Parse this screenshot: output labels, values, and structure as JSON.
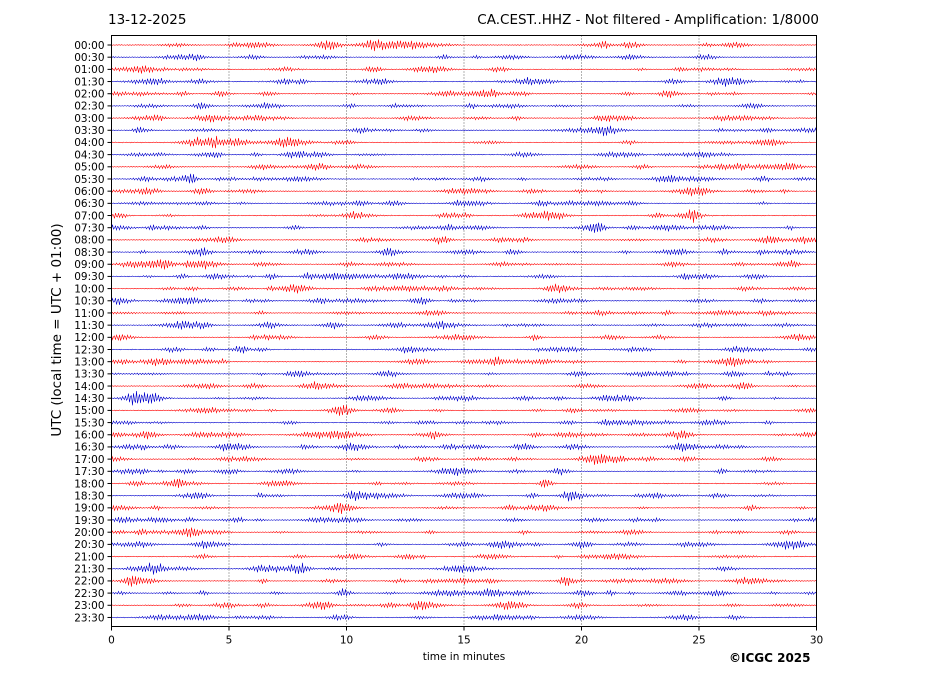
{
  "header": {
    "date": "13-12-2025",
    "station_info": "CA.CEST..HHZ - Not filtered - Amplification: 1/8000"
  },
  "copyright": "©ICGC 2025",
  "chart_data": {
    "type": "line",
    "xlabel": "time in minutes",
    "ylabel": "UTC (local time = UTC + 01:00)",
    "xlim": [
      0,
      30
    ],
    "x_ticks": [
      0,
      5,
      10,
      15,
      20,
      25,
      30
    ],
    "grid": "vertical dotted at x ticks",
    "row_labels": [
      "00:00",
      "00:30",
      "01:00",
      "01:30",
      "02:00",
      "02:30",
      "03:00",
      "03:30",
      "04:00",
      "04:30",
      "05:00",
      "05:30",
      "06:00",
      "06:30",
      "07:00",
      "07:30",
      "08:00",
      "08:30",
      "09:00",
      "09:30",
      "10:00",
      "10:30",
      "11:00",
      "11:30",
      "12:00",
      "12:30",
      "13:00",
      "13:30",
      "14:00",
      "14:30",
      "15:00",
      "15:30",
      "16:00",
      "16:30",
      "17:00",
      "17:30",
      "18:00",
      "18:30",
      "19:00",
      "19:30",
      "20:00",
      "20:30",
      "21:00",
      "21:30",
      "22:00",
      "22:30",
      "23:00",
      "23:30"
    ],
    "series_colors": [
      "#ff0000",
      "#0000cc"
    ],
    "trace_style": "seismogram, colors alternate per row"
  }
}
